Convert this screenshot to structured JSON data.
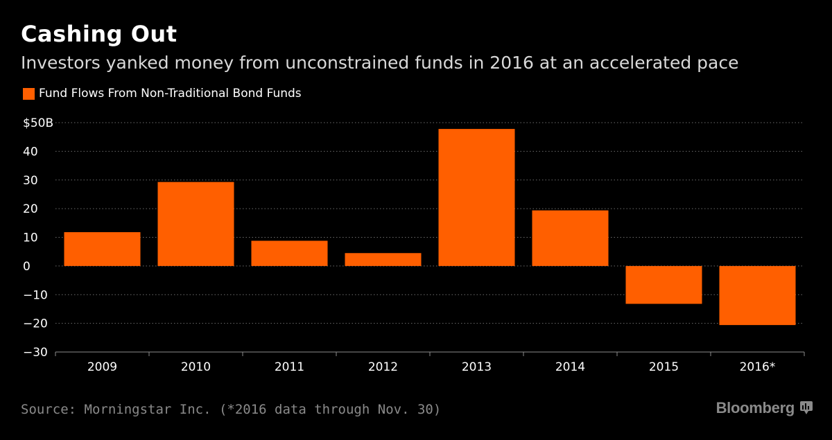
{
  "title": "Cashing Out",
  "subtitle": "Investors yanked money from unconstrained funds in 2016 at an accelerated pace",
  "legend": {
    "label": "Fund Flows From Non-Traditional Bond Funds"
  },
  "colors": {
    "bar": "#ff5f00",
    "background": "#000000",
    "grid": "#6e6e6e",
    "axis": "#8c8c8c",
    "muted_text": "#8a8a8a"
  },
  "chart_data": {
    "type": "bar",
    "title": "Cashing Out",
    "subtitle": "Investors yanked money from unconstrained funds in 2016 at an accelerated pace",
    "xlabel": "",
    "ylabel": "",
    "categories": [
      "2009",
      "2010",
      "2011",
      "2012",
      "2013",
      "2014",
      "2015",
      "2016*"
    ],
    "series": [
      {
        "name": "Fund Flows From Non-Traditional Bond Funds",
        "values": [
          11.8,
          29.3,
          8.8,
          4.5,
          47.8,
          19.4,
          -13.2,
          -20.6
        ]
      }
    ],
    "ylim": [
      -30,
      50
    ],
    "yticks": [
      {
        "value": 50,
        "label": "$50B"
      },
      {
        "value": 40,
        "label": "40"
      },
      {
        "value": 30,
        "label": "30"
      },
      {
        "value": 20,
        "label": "20"
      },
      {
        "value": 10,
        "label": "10"
      },
      {
        "value": 0,
        "label": "0"
      },
      {
        "value": -10,
        "label": "-10"
      },
      {
        "value": -20,
        "label": "-20"
      },
      {
        "value": -30,
        "label": "-30"
      }
    ],
    "grid": true,
    "legend_position": "top-left"
  },
  "source": "Source: Morningstar Inc. (*2016 data through Nov. 30)",
  "brand": {
    "name": "Bloomberg",
    "icon": "bloomberg-terminal-icon"
  }
}
